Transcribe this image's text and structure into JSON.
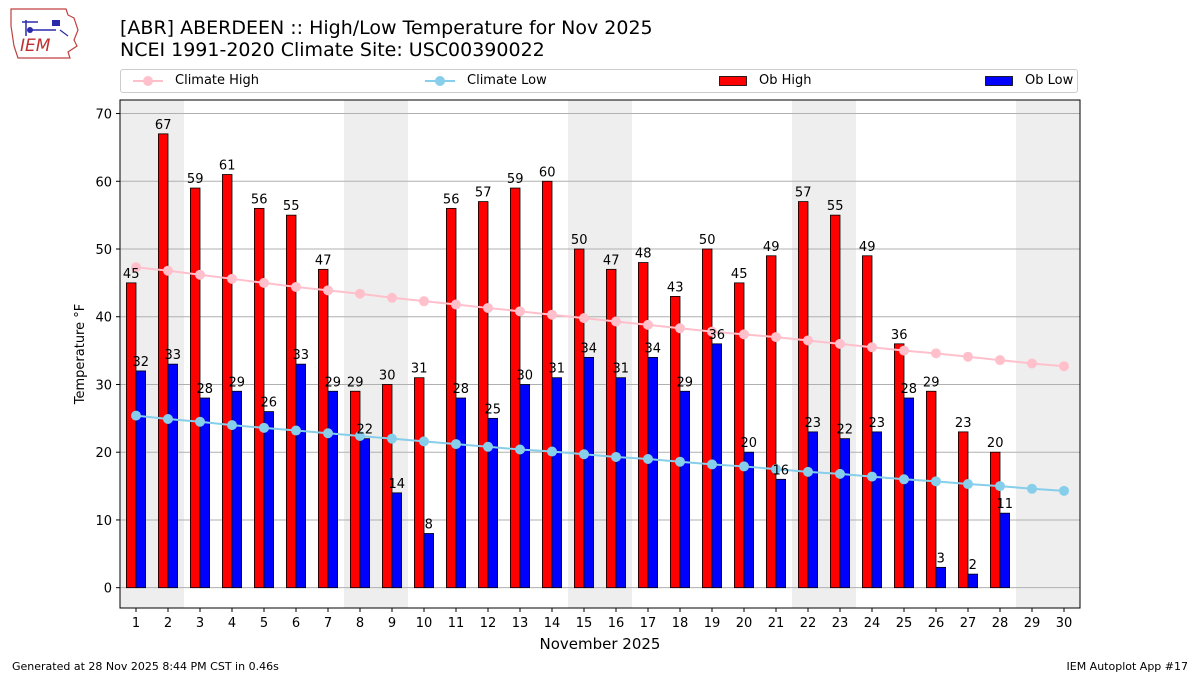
{
  "logo": {
    "icon": "iem-logo-icon",
    "text": "IEM"
  },
  "header": {
    "title_line1": "[ABR] ABERDEEN :: High/Low Temperature for Nov 2025",
    "title_line2": "NCEI 1991-2020 Climate Site: USC00390022"
  },
  "legend": {
    "climate_high": "Climate High",
    "climate_low": "Climate Low",
    "ob_high": "Ob High",
    "ob_low": "Ob Low"
  },
  "footer": {
    "left": "Generated at 28 Nov 2025 8:44 PM CST in 0.46s",
    "right": "IEM Autoplot App #17"
  },
  "colors": {
    "ob_high": "#ff0000",
    "ob_low": "#0000ff",
    "climate_high": "#ffc0cb",
    "climate_low": "#87ceeb",
    "weekend_shade": "#eeeeee",
    "grid": "#b0b0b0"
  },
  "chart_data": {
    "type": "bar",
    "xlabel": "November 2025",
    "ylabel": "Temperature °F",
    "ylim": [
      -3,
      72
    ],
    "yticks": [
      0,
      10,
      20,
      30,
      40,
      50,
      60,
      70
    ],
    "grid": "horizontal",
    "legend_position": "top",
    "categories": [
      "1",
      "2",
      "3",
      "4",
      "5",
      "6",
      "7",
      "8",
      "9",
      "10",
      "11",
      "12",
      "13",
      "14",
      "15",
      "16",
      "17",
      "18",
      "19",
      "20",
      "21",
      "22",
      "23",
      "24",
      "25",
      "26",
      "27",
      "28",
      "29",
      "30"
    ],
    "weekend_days": [
      1,
      2,
      8,
      9,
      15,
      16,
      22,
      23,
      29,
      30
    ],
    "series": [
      {
        "name": "Ob High",
        "kind": "bar",
        "values": [
          45,
          67,
          59,
          61,
          56,
          55,
          47,
          29,
          30,
          31,
          56,
          57,
          59,
          60,
          50,
          47,
          48,
          43,
          50,
          45,
          49,
          57,
          55,
          49,
          36,
          29,
          23,
          20,
          null,
          null
        ]
      },
      {
        "name": "Ob Low",
        "kind": "bar",
        "values": [
          32,
          33,
          28,
          29,
          26,
          33,
          29,
          22,
          14,
          8,
          28,
          25,
          30,
          31,
          34,
          31,
          34,
          29,
          36,
          20,
          16,
          23,
          22,
          23,
          28,
          3,
          2,
          11,
          null,
          null
        ]
      },
      {
        "name": "Climate High",
        "kind": "line",
        "values": [
          47.3,
          46.8,
          46.2,
          45.6,
          45.0,
          44.4,
          43.9,
          43.4,
          42.8,
          42.3,
          41.8,
          41.3,
          40.8,
          40.3,
          39.8,
          39.3,
          38.8,
          38.3,
          37.8,
          37.4,
          37.0,
          36.5,
          36.0,
          35.5,
          35.0,
          34.6,
          34.1,
          33.6,
          33.1,
          32.7
        ]
      },
      {
        "name": "Climate Low",
        "kind": "line",
        "values": [
          25.4,
          24.9,
          24.5,
          24.0,
          23.6,
          23.2,
          22.8,
          22.4,
          22.0,
          21.6,
          21.2,
          20.8,
          20.4,
          20.1,
          19.7,
          19.3,
          19.0,
          18.6,
          18.2,
          17.9,
          17.5,
          17.1,
          16.8,
          16.4,
          16.0,
          15.7,
          15.3,
          15.0,
          14.6,
          14.3
        ]
      }
    ]
  }
}
